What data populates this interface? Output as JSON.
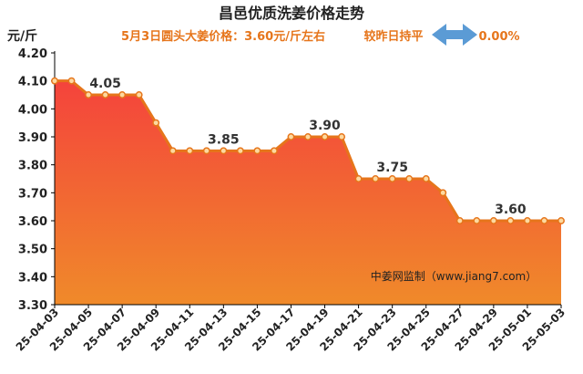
{
  "header": {
    "title": "昌邑优质洗姜价格走势",
    "unit": "元/斤",
    "price_note": "5月3日圆头大姜价格：3.60元/斤左右",
    "compare_label": "较昨日持平",
    "compare_pct": "0.00%",
    "compare_icon": "double-arrow-icon",
    "compare_icon_color": "#5b9bd5"
  },
  "watermark": "中姜网监制（www.jiang7.com）",
  "colors": {
    "line": "#e6751b",
    "area_top": "#f4433c",
    "area_bottom": "#f08a2a",
    "marker_fill": "#fdd9a0",
    "accent": "#e6751b"
  },
  "chart_data": {
    "type": "area",
    "title": "昌邑优质洗姜价格走势",
    "ylabel": "元/斤",
    "xlabel": "",
    "ylim": [
      3.3,
      4.2
    ],
    "yticks": [
      "4.20",
      "4.10",
      "4.00",
      "3.90",
      "3.80",
      "3.70",
      "3.60",
      "3.50",
      "3.40",
      "3.30"
    ],
    "x": [
      "25-04-03",
      "25-04-04",
      "25-04-05",
      "25-04-06",
      "25-04-07",
      "25-04-08",
      "25-04-09",
      "25-04-10",
      "25-04-11",
      "25-04-12",
      "25-04-13",
      "25-04-14",
      "25-04-15",
      "25-04-16",
      "25-04-17",
      "25-04-18",
      "25-04-19",
      "25-04-20",
      "25-04-21",
      "25-04-22",
      "25-04-23",
      "25-04-24",
      "25-04-25",
      "25-04-26",
      "25-04-27",
      "25-04-28",
      "25-04-29",
      "25-04-30",
      "25-05-01",
      "25-05-02",
      "25-05-03"
    ],
    "values": [
      4.1,
      4.1,
      4.05,
      4.05,
      4.05,
      4.05,
      3.95,
      3.85,
      3.85,
      3.85,
      3.85,
      3.85,
      3.85,
      3.85,
      3.9,
      3.9,
      3.9,
      3.9,
      3.75,
      3.75,
      3.75,
      3.75,
      3.75,
      3.7,
      3.6,
      3.6,
      3.6,
      3.6,
      3.6,
      3.6,
      3.6
    ],
    "xtick_labels": [
      "25-04-03",
      "25-04-05",
      "25-04-07",
      "25-04-09",
      "25-04-11",
      "25-04-13",
      "25-04-15",
      "25-04-17",
      "25-04-19",
      "25-04-21",
      "25-04-23",
      "25-04-25",
      "25-04-27",
      "25-04-29",
      "25-05-01",
      "25-05-03"
    ],
    "data_labels": [
      {
        "index": 3,
        "text": "4.05"
      },
      {
        "index": 10,
        "text": "3.85"
      },
      {
        "index": 16,
        "text": "3.90"
      },
      {
        "index": 20,
        "text": "3.75"
      },
      {
        "index": 27,
        "text": "3.60"
      }
    ],
    "grid": false,
    "legend": "none"
  }
}
